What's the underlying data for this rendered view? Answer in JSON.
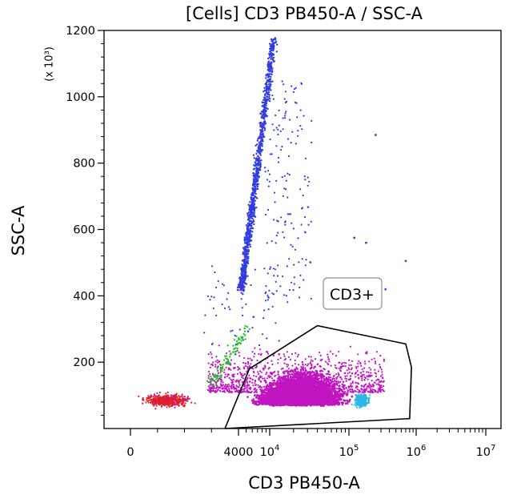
{
  "chart_data": {
    "type": "scatter",
    "title": "[Cells] CD3 PB450-A / SSC-A",
    "xlabel": "CD3 PB450-A",
    "ylabel": "SSC-A",
    "y_multiplier": "(x 10³)",
    "x_scale": "biexponential",
    "ylim": [
      0,
      1200
    ],
    "grid": false,
    "y_ticks": [
      {
        "value": 200,
        "label": "200"
      },
      {
        "value": 400,
        "label": "400"
      },
      {
        "value": 600,
        "label": "600"
      },
      {
        "value": 800,
        "label": "800"
      },
      {
        "value": 1000,
        "label": "1000"
      },
      {
        "value": 1200,
        "label": "1200"
      }
    ],
    "x_ticks": [
      {
        "value": 0,
        "label": "0"
      },
      {
        "value": 4000,
        "label": "4000"
      },
      {
        "value": 10000,
        "base": "10",
        "exp": "4"
      },
      {
        "value": 100000,
        "base": "10",
        "exp": "5"
      },
      {
        "value": 1000000,
        "base": "10",
        "exp": "6"
      },
      {
        "value": 10000000,
        "base": "10",
        "exp": "7"
      }
    ],
    "gate": {
      "name": "CD3+",
      "polygon": [
        [
          3500,
          0
        ],
        [
          5500,
          180
        ],
        [
          40000,
          310
        ],
        [
          700000,
          255
        ],
        [
          850000,
          185
        ],
        [
          800000,
          30
        ],
        [
          3500,
          0
        ]
      ]
    },
    "populations": [
      {
        "color": "#7a2ee0",
        "x_range": [
          3000,
          6000
        ],
        "y_range": [
          400,
          700
        ]
      },
      {
        "color": "#2b3fe0",
        "x_range": [
          5000,
          12000
        ],
        "y_range": [
          350,
          1200
        ]
      },
      {
        "color": "#27c22b",
        "x_range": [
          3500,
          8000
        ],
        "y_range": [
          150,
          330
        ]
      },
      {
        "color": "#e0201c",
        "x_range": [
          100,
          2500
        ],
        "y_range": [
          50,
          130
        ]
      },
      {
        "color": "#c015c0",
        "x_range": [
          4500,
          180000
        ],
        "y_range": [
          30,
          270
        ]
      },
      {
        "color": "#2fb6e8",
        "x_range": [
          120000,
          250000
        ],
        "y_range": [
          40,
          120
        ]
      }
    ],
    "outliers": [
      {
        "x": 250000,
        "y": 885,
        "color": "#2b3fe0"
      },
      {
        "x": 120000,
        "y": 575,
        "color": "#2b3fe0"
      },
      {
        "x": 180000,
        "y": 560,
        "color": "#2b3fe0"
      },
      {
        "x": 700000,
        "y": 505,
        "color": "#7a2ee0"
      },
      {
        "x": 350000,
        "y": 420,
        "color": "#7a2ee0"
      }
    ]
  }
}
